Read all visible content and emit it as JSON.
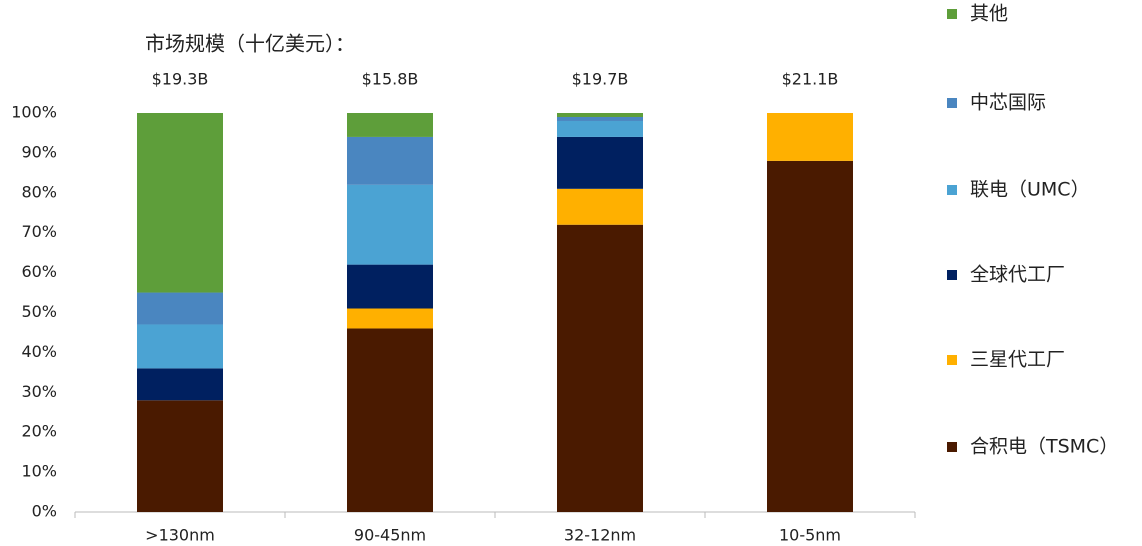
{
  "chart_data": {
    "type": "stacked_bar",
    "subtitle": "市场规模（十亿美元）：",
    "categories": [
      ">130nm",
      "90-45nm",
      "32-12nm",
      "10-5nm"
    ],
    "market_labels": [
      "$19.3B",
      "$15.8B",
      "$19.7B",
      "$21.1B"
    ],
    "series": [
      {
        "name": "合积电（TSMC）",
        "color": "#4a1a00",
        "values": [
          28,
          46,
          72,
          88
        ]
      },
      {
        "name": "三星代工厂",
        "color": "#ffb000",
        "values": [
          0,
          5,
          9,
          12
        ]
      },
      {
        "name": "全球代工厂",
        "color": "#002060",
        "values": [
          8,
          11,
          13,
          0
        ]
      },
      {
        "name": "联电（UMC）",
        "color": "#4ba3d3",
        "values": [
          11,
          20,
          4,
          0
        ]
      },
      {
        "name": "中芯国际",
        "color": "#4a86c0",
        "values": [
          8,
          12,
          1,
          0
        ]
      },
      {
        "name": "其他",
        "color": "#5e9e3a",
        "values": [
          45,
          6,
          1,
          0
        ]
      }
    ],
    "ylim": [
      0,
      100
    ],
    "yticks": [
      {
        "value": 0,
        "label": "0%"
      },
      {
        "value": 10,
        "label": "10%"
      },
      {
        "value": 20,
        "label": "20%"
      },
      {
        "value": 30,
        "label": "30%"
      },
      {
        "value": 40,
        "label": "40%"
      },
      {
        "value": 50,
        "label": "50%"
      },
      {
        "value": 60,
        "label": "60%"
      },
      {
        "value": 70,
        "label": "70%"
      },
      {
        "value": 80,
        "label": "80%"
      },
      {
        "value": 90,
        "label": "90%"
      },
      {
        "value": 100,
        "label": "100%"
      }
    ],
    "grid": false
  }
}
